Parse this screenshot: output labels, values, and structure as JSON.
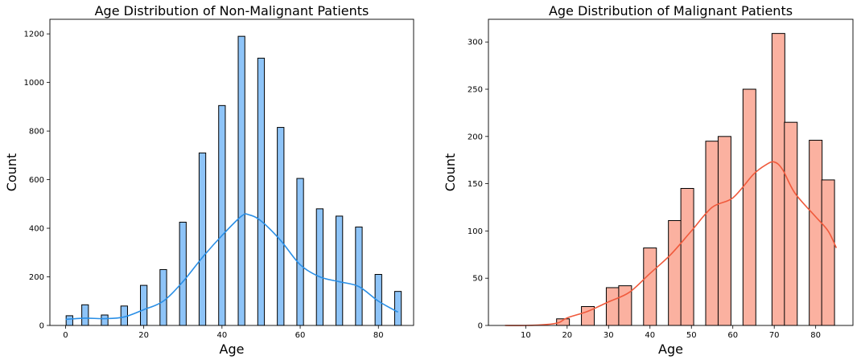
{
  "chart_data": [
    {
      "type": "bar",
      "title": "Age Distribution of Non-Malignant Patients",
      "xlabel": "Age",
      "ylabel": "Count",
      "xlim": [
        -4,
        89
      ],
      "ylim": [
        0,
        1260
      ],
      "xticks": [
        0,
        20,
        40,
        60,
        80
      ],
      "yticks": [
        0,
        200,
        400,
        600,
        800,
        1000,
        1200
      ],
      "bar_color": "#8ec4f8",
      "kde_color": "#2a8fe6",
      "bin_width": 1.7,
      "bars": [
        {
          "x": 1,
          "value": 40
        },
        {
          "x": 5,
          "value": 85
        },
        {
          "x": 10,
          "value": 43
        },
        {
          "x": 15,
          "value": 80
        },
        {
          "x": 20,
          "value": 165
        },
        {
          "x": 25,
          "value": 230
        },
        {
          "x": 30,
          "value": 425
        },
        {
          "x": 35,
          "value": 710
        },
        {
          "x": 40,
          "value": 905
        },
        {
          "x": 45,
          "value": 1190
        },
        {
          "x": 50,
          "value": 1100
        },
        {
          "x": 55,
          "value": 815
        },
        {
          "x": 60,
          "value": 605
        },
        {
          "x": 65,
          "value": 480
        },
        {
          "x": 70,
          "value": 450
        },
        {
          "x": 75,
          "value": 405
        },
        {
          "x": 80,
          "value": 210
        },
        {
          "x": 85,
          "value": 140
        }
      ],
      "kde": {
        "x": [
          0,
          5,
          10,
          15,
          20,
          25,
          30,
          35,
          40,
          45,
          47,
          50,
          55,
          60,
          65,
          70,
          75,
          80,
          85
        ],
        "y": [
          25,
          30,
          28,
          35,
          65,
          100,
          180,
          280,
          370,
          450,
          455,
          430,
          350,
          250,
          200,
          180,
          160,
          100,
          55
        ]
      }
    },
    {
      "type": "bar",
      "title": "Age Distribution of Malignant Patients",
      "xlabel": "Age",
      "ylabel": "Count",
      "xlim": [
        1,
        89
      ],
      "ylim": [
        0,
        324
      ],
      "xticks": [
        10,
        20,
        30,
        40,
        50,
        60,
        70,
        80
      ],
      "yticks": [
        0,
        50,
        100,
        150,
        200,
        250,
        300
      ],
      "bar_color": "#fbb1a0",
      "kde_color": "#f05a3c",
      "bin_width": 3.1,
      "bars": [
        {
          "x": 19,
          "value": 7
        },
        {
          "x": 25,
          "value": 20
        },
        {
          "x": 31,
          "value": 40
        },
        {
          "x": 34,
          "value": 42
        },
        {
          "x": 40,
          "value": 82
        },
        {
          "x": 46,
          "value": 111
        },
        {
          "x": 49,
          "value": 145
        },
        {
          "x": 55,
          "value": 195
        },
        {
          "x": 58,
          "value": 200
        },
        {
          "x": 64,
          "value": 250
        },
        {
          "x": 71,
          "value": 309
        },
        {
          "x": 74,
          "value": 215
        },
        {
          "x": 80,
          "value": 196
        },
        {
          "x": 83,
          "value": 154
        }
      ],
      "kde": {
        "x": [
          5,
          10,
          15,
          18,
          20,
          25,
          30,
          35,
          40,
          45,
          50,
          55,
          60,
          65,
          68,
          70,
          72,
          75,
          80,
          83,
          85
        ],
        "y": [
          0,
          0,
          1,
          3,
          8,
          15,
          25,
          35,
          55,
          75,
          100,
          125,
          135,
          160,
          170,
          173,
          165,
          140,
          115,
          100,
          82
        ]
      }
    }
  ]
}
